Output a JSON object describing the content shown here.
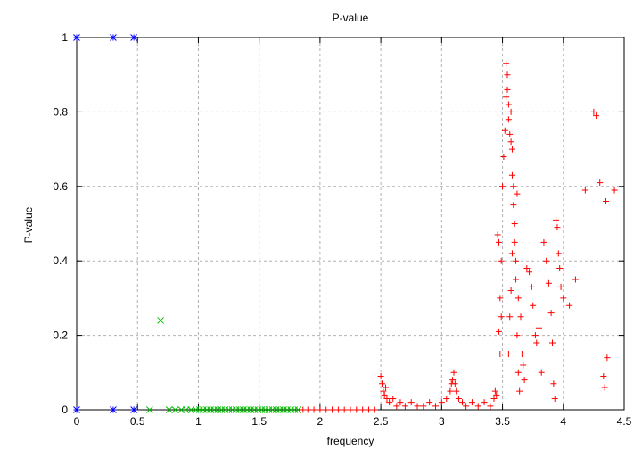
{
  "chart_data": {
    "type": "scatter",
    "title": "P-value",
    "xlabel": "frequency",
    "ylabel": "P-value",
    "xlim": [
      0,
      4.5
    ],
    "ylim": [
      0,
      1
    ],
    "x_ticks": [
      "0",
      "0.5",
      "1",
      "1.5",
      "2",
      "2.5",
      "3",
      "3.5",
      "4",
      "4.5"
    ],
    "y_ticks": [
      "0",
      "0.2",
      "0.4",
      "0.6",
      "0.8",
      "1"
    ],
    "grid": true,
    "legend": "none",
    "series": [
      {
        "marker": "asterisk",
        "color": "#0000ff",
        "points": [
          [
            0,
            1
          ],
          [
            0.3,
            1
          ],
          [
            0.47,
            1
          ],
          [
            0,
            0
          ],
          [
            0.3,
            0
          ],
          [
            0.47,
            0
          ]
        ]
      },
      {
        "marker": "x",
        "color": "#00c000",
        "points": [
          [
            0.69,
            0.24
          ],
          [
            0.6,
            0
          ],
          [
            0.76,
            0
          ],
          [
            0.81,
            0
          ],
          [
            0.86,
            0
          ],
          [
            0.9,
            0
          ],
          [
            0.94,
            0
          ],
          [
            0.98,
            0
          ],
          [
            1.01,
            0
          ],
          [
            1.04,
            0
          ],
          [
            1.07,
            0
          ],
          [
            1.1,
            0
          ],
          [
            1.13,
            0
          ],
          [
            1.16,
            0
          ],
          [
            1.19,
            0
          ],
          [
            1.22,
            0
          ],
          [
            1.25,
            0
          ],
          [
            1.28,
            0
          ],
          [
            1.31,
            0
          ],
          [
            1.34,
            0
          ],
          [
            1.37,
            0
          ],
          [
            1.4,
            0
          ],
          [
            1.43,
            0
          ],
          [
            1.46,
            0
          ],
          [
            1.49,
            0
          ],
          [
            1.52,
            0
          ],
          [
            1.55,
            0
          ],
          [
            1.58,
            0
          ],
          [
            1.61,
            0
          ],
          [
            1.64,
            0
          ],
          [
            1.67,
            0
          ],
          [
            1.7,
            0
          ],
          [
            1.73,
            0
          ],
          [
            1.76,
            0
          ],
          [
            1.79,
            0
          ],
          [
            1.82,
            0
          ]
        ]
      },
      {
        "marker": "plus",
        "color": "#ff0000",
        "points": [
          [
            1.86,
            0
          ],
          [
            1.9,
            0
          ],
          [
            1.95,
            0
          ],
          [
            2.0,
            0
          ],
          [
            2.05,
            0
          ],
          [
            2.1,
            0
          ],
          [
            2.15,
            0
          ],
          [
            2.2,
            0
          ],
          [
            2.25,
            0
          ],
          [
            2.3,
            0
          ],
          [
            2.35,
            0
          ],
          [
            2.4,
            0
          ],
          [
            2.45,
            0
          ],
          [
            2.5,
            0.09
          ],
          [
            2.51,
            0.07
          ],
          [
            2.52,
            0.05
          ],
          [
            2.53,
            0.04
          ],
          [
            2.54,
            0.06
          ],
          [
            2.55,
            0.03
          ],
          [
            2.57,
            0.02
          ],
          [
            2.6,
            0.03
          ],
          [
            2.63,
            0.01
          ],
          [
            2.66,
            0.02
          ],
          [
            2.7,
            0.01
          ],
          [
            2.75,
            0.02
          ],
          [
            2.8,
            0.01
          ],
          [
            2.85,
            0.01
          ],
          [
            2.9,
            0.02
          ],
          [
            2.95,
            0.01
          ],
          [
            3.0,
            0.02
          ],
          [
            3.04,
            0.03
          ],
          [
            3.07,
            0.05
          ],
          [
            3.08,
            0.07
          ],
          [
            3.09,
            0.08
          ],
          [
            3.1,
            0.1
          ],
          [
            3.11,
            0.07
          ],
          [
            3.12,
            0.05
          ],
          [
            3.14,
            0.03
          ],
          [
            3.17,
            0.02
          ],
          [
            3.2,
            0.01
          ],
          [
            3.25,
            0.02
          ],
          [
            3.3,
            0.01
          ],
          [
            3.35,
            0.02
          ],
          [
            3.4,
            0.01
          ],
          [
            3.43,
            0.03
          ],
          [
            3.44,
            0.05
          ],
          [
            3.45,
            0.04
          ],
          [
            3.46,
            0.47
          ],
          [
            3.47,
            0.45
          ],
          [
            3.48,
            0.3
          ],
          [
            3.49,
            0.25
          ],
          [
            3.47,
            0.21
          ],
          [
            3.48,
            0.15
          ],
          [
            3.49,
            0.4
          ],
          [
            3.5,
            0.6
          ],
          [
            3.51,
            0.68
          ],
          [
            3.52,
            0.75
          ],
          [
            3.53,
            0.84
          ],
          [
            3.53,
            0.93
          ],
          [
            3.54,
            0.9
          ],
          [
            3.54,
            0.86
          ],
          [
            3.55,
            0.82
          ],
          [
            3.55,
            0.78
          ],
          [
            3.56,
            0.74
          ],
          [
            3.57,
            0.72
          ],
          [
            3.57,
            0.8
          ],
          [
            3.58,
            0.7
          ],
          [
            3.58,
            0.63
          ],
          [
            3.59,
            0.6
          ],
          [
            3.59,
            0.55
          ],
          [
            3.6,
            0.5
          ],
          [
            3.6,
            0.45
          ],
          [
            3.61,
            0.4
          ],
          [
            3.61,
            0.35
          ],
          [
            3.62,
            0.2
          ],
          [
            3.63,
            0.1
          ],
          [
            3.64,
            0.05
          ],
          [
            3.55,
            0.15
          ],
          [
            3.56,
            0.25
          ],
          [
            3.57,
            0.32
          ],
          [
            3.58,
            0.42
          ],
          [
            3.62,
            0.58
          ],
          [
            3.63,
            0.3
          ],
          [
            3.65,
            0.25
          ],
          [
            3.66,
            0.15
          ],
          [
            3.67,
            0.12
          ],
          [
            3.68,
            0.08
          ],
          [
            3.7,
            0.38
          ],
          [
            3.72,
            0.37
          ],
          [
            3.74,
            0.33
          ],
          [
            3.75,
            0.28
          ],
          [
            3.77,
            0.2
          ],
          [
            3.78,
            0.18
          ],
          [
            3.8,
            0.22
          ],
          [
            3.82,
            0.1
          ],
          [
            3.84,
            0.45
          ],
          [
            3.86,
            0.4
          ],
          [
            3.88,
            0.34
          ],
          [
            3.9,
            0.26
          ],
          [
            3.91,
            0.18
          ],
          [
            3.92,
            0.07
          ],
          [
            3.93,
            0.03
          ],
          [
            3.94,
            0.51
          ],
          [
            3.95,
            0.49
          ],
          [
            3.96,
            0.42
          ],
          [
            3.97,
            0.38
          ],
          [
            3.98,
            0.33
          ],
          [
            4.0,
            0.3
          ],
          [
            4.05,
            0.28
          ],
          [
            4.1,
            0.35
          ],
          [
            4.18,
            0.59
          ],
          [
            4.25,
            0.8
          ],
          [
            4.27,
            0.79
          ],
          [
            4.3,
            0.61
          ],
          [
            4.33,
            0.09
          ],
          [
            4.34,
            0.06
          ],
          [
            4.35,
            0.56
          ],
          [
            4.36,
            0.14
          ],
          [
            4.42,
            0.59
          ]
        ]
      }
    ]
  }
}
